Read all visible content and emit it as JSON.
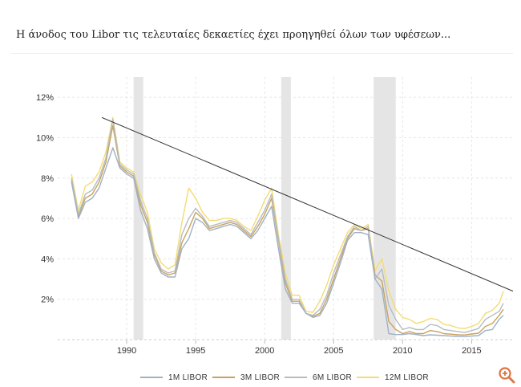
{
  "chart_data": {
    "type": "line",
    "title": "Η άνοδος του Libor τις τελευταίες δεκαετίες έχει προηγηθεί όλων των υφέσεων...",
    "xlabel": "",
    "ylabel": "",
    "x_ticks": [
      "1990",
      "1995",
      "2000",
      "2005",
      "2010",
      "2015"
    ],
    "y_ticks": [
      "2%",
      "4%",
      "6%",
      "8%",
      "10%",
      "12%"
    ],
    "xlim": [
      1985.0,
      2018.0
    ],
    "ylim": [
      0,
      13
    ],
    "grid": true,
    "legend_position": "bottom",
    "recessions": [
      [
        1990.5,
        1991.2
      ],
      [
        2001.2,
        2001.9
      ],
      [
        2007.9,
        2009.5
      ]
    ],
    "trendline": [
      [
        1988.2,
        11.0
      ],
      [
        2018.0,
        2.4
      ]
    ],
    "series": [
      {
        "name": "1M LIBOR",
        "color": "#9fb2c5",
        "x": [
          1986.0,
          1986.5,
          1987.0,
          1987.5,
          1988.0,
          1988.5,
          1989.0,
          1989.5,
          1990.0,
          1990.5,
          1991.0,
          1991.5,
          1992.0,
          1992.5,
          1993.0,
          1993.5,
          1994.0,
          1994.5,
          1995.0,
          1995.5,
          1996.0,
          1996.5,
          1997.0,
          1997.5,
          1998.0,
          1998.5,
          1999.0,
          1999.5,
          2000.0,
          2000.5,
          2001.0,
          2001.5,
          2002.0,
          2002.5,
          2003.0,
          2003.5,
          2004.0,
          2004.5,
          2005.0,
          2005.5,
          2006.0,
          2006.5,
          2007.0,
          2007.5,
          2008.0,
          2008.5,
          2009.0,
          2009.5,
          2010.0,
          2010.5,
          2011.0,
          2011.5,
          2012.0,
          2012.5,
          2013.0,
          2013.5,
          2014.0,
          2014.5,
          2015.0,
          2015.5,
          2016.0,
          2016.5,
          2017.0,
          2017.3
        ],
        "values": [
          7.8,
          6.0,
          6.8,
          7.0,
          7.5,
          8.5,
          9.5,
          8.5,
          8.2,
          8.0,
          6.4,
          5.5,
          4.0,
          3.3,
          3.1,
          3.1,
          4.5,
          5.0,
          6.0,
          5.8,
          5.4,
          5.5,
          5.6,
          5.7,
          5.6,
          5.3,
          5.0,
          5.4,
          6.0,
          6.6,
          4.5,
          2.5,
          1.8,
          1.8,
          1.3,
          1.1,
          1.2,
          1.8,
          2.8,
          3.8,
          4.9,
          5.3,
          5.3,
          5.2,
          3.0,
          2.5,
          0.3,
          0.25,
          0.25,
          0.3,
          0.25,
          0.2,
          0.24,
          0.22,
          0.2,
          0.18,
          0.16,
          0.15,
          0.18,
          0.2,
          0.45,
          0.5,
          1.0,
          1.2
        ]
      },
      {
        "name": "3M LIBOR",
        "color": "#c9a25d",
        "x": [
          1986.0,
          1986.5,
          1987.0,
          1987.5,
          1988.0,
          1988.5,
          1989.0,
          1989.5,
          1990.0,
          1990.5,
          1991.0,
          1991.5,
          1992.0,
          1992.5,
          1993.0,
          1993.5,
          1994.0,
          1994.5,
          1995.0,
          1995.5,
          1996.0,
          1996.5,
          1997.0,
          1997.5,
          1998.0,
          1998.5,
          1999.0,
          1999.5,
          2000.0,
          2000.5,
          2001.0,
          2001.5,
          2002.0,
          2002.5,
          2003.0,
          2003.5,
          2004.0,
          2004.5,
          2005.0,
          2005.5,
          2006.0,
          2006.5,
          2007.0,
          2007.5,
          2008.0,
          2008.5,
          2009.0,
          2009.5,
          2010.0,
          2010.5,
          2011.0,
          2011.5,
          2012.0,
          2012.5,
          2013.0,
          2013.5,
          2014.0,
          2014.5,
          2015.0,
          2015.5,
          2016.0,
          2016.5,
          2017.0,
          2017.3
        ],
        "values": [
          7.9,
          6.1,
          7.0,
          7.2,
          7.8,
          8.8,
          10.6,
          8.6,
          8.3,
          8.1,
          6.7,
          5.8,
          4.2,
          3.4,
          3.2,
          3.3,
          4.8,
          5.5,
          6.3,
          6.0,
          5.5,
          5.6,
          5.7,
          5.8,
          5.7,
          5.4,
          5.1,
          5.6,
          6.2,
          7.0,
          4.9,
          2.8,
          1.9,
          1.9,
          1.3,
          1.15,
          1.3,
          2.0,
          3.0,
          4.0,
          5.0,
          5.5,
          5.4,
          5.5,
          3.2,
          2.9,
          0.9,
          0.5,
          0.3,
          0.4,
          0.3,
          0.3,
          0.45,
          0.4,
          0.3,
          0.27,
          0.24,
          0.23,
          0.28,
          0.32,
          0.65,
          0.8,
          1.2,
          1.5
        ]
      },
      {
        "name": "6M LIBOR",
        "color": "#b7bcc2",
        "x": [
          1986.0,
          1986.5,
          1987.0,
          1987.5,
          1988.0,
          1988.5,
          1989.0,
          1989.5,
          1990.0,
          1990.5,
          1991.0,
          1991.5,
          1992.0,
          1992.5,
          1993.0,
          1993.5,
          1994.0,
          1994.5,
          1995.0,
          1995.5,
          1996.0,
          1996.5,
          1997.0,
          1997.5,
          1998.0,
          1998.5,
          1999.0,
          1999.5,
          2000.0,
          2000.5,
          2001.0,
          2001.5,
          2002.0,
          2002.5,
          2003.0,
          2003.5,
          2004.0,
          2004.5,
          2005.0,
          2005.5,
          2006.0,
          2006.5,
          2007.0,
          2007.5,
          2008.0,
          2008.5,
          2009.0,
          2009.5,
          2010.0,
          2010.5,
          2011.0,
          2011.5,
          2012.0,
          2012.5,
          2013.0,
          2013.5,
          2014.0,
          2014.5,
          2015.0,
          2015.5,
          2016.0,
          2016.5,
          2017.0,
          2017.3
        ],
        "values": [
          8.0,
          6.2,
          7.2,
          7.4,
          8.0,
          9.0,
          10.9,
          8.7,
          8.4,
          8.2,
          6.9,
          6.0,
          4.3,
          3.5,
          3.3,
          3.4,
          5.2,
          6.0,
          6.5,
          6.1,
          5.6,
          5.7,
          5.8,
          5.9,
          5.8,
          5.5,
          5.2,
          5.8,
          6.4,
          7.2,
          5.0,
          3.0,
          2.0,
          2.0,
          1.3,
          1.2,
          1.5,
          2.2,
          3.3,
          4.2,
          5.1,
          5.6,
          5.4,
          5.6,
          3.0,
          3.5,
          1.7,
          1.0,
          0.5,
          0.6,
          0.5,
          0.5,
          0.75,
          0.7,
          0.5,
          0.45,
          0.4,
          0.35,
          0.45,
          0.55,
          1.0,
          1.2,
          1.4,
          1.8
        ]
      },
      {
        "name": "12M LIBOR",
        "color": "#f3dc72",
        "x": [
          1986.0,
          1986.5,
          1987.0,
          1987.5,
          1988.0,
          1988.5,
          1989.0,
          1989.5,
          1990.0,
          1990.5,
          1991.0,
          1991.5,
          1992.0,
          1992.5,
          1993.0,
          1993.5,
          1994.0,
          1994.5,
          1995.0,
          1995.5,
          1996.0,
          1996.5,
          1997.0,
          1997.5,
          1998.0,
          1998.5,
          1999.0,
          1999.5,
          2000.0,
          2000.5,
          2001.0,
          2001.5,
          2002.0,
          2002.5,
          2003.0,
          2003.5,
          2004.0,
          2004.5,
          2005.0,
          2005.5,
          2006.0,
          2006.5,
          2007.0,
          2007.5,
          2008.0,
          2008.5,
          2009.0,
          2009.5,
          2010.0,
          2010.5,
          2011.0,
          2011.5,
          2012.0,
          2012.5,
          2013.0,
          2013.5,
          2014.0,
          2014.5,
          2015.0,
          2015.5,
          2016.0,
          2016.5,
          2017.0,
          2017.3
        ],
        "values": [
          8.2,
          6.4,
          7.6,
          7.8,
          8.3,
          9.3,
          11.0,
          8.8,
          8.5,
          8.3,
          7.2,
          6.3,
          4.5,
          3.8,
          3.5,
          3.7,
          5.8,
          7.5,
          7.0,
          6.3,
          5.9,
          5.9,
          6.0,
          6.0,
          5.9,
          5.6,
          5.4,
          6.1,
          6.9,
          7.5,
          5.2,
          3.3,
          2.2,
          2.2,
          1.4,
          1.35,
          1.9,
          2.7,
          3.7,
          4.5,
          5.3,
          5.7,
          5.5,
          5.7,
          3.4,
          4.0,
          2.4,
          1.5,
          1.1,
          1.0,
          0.8,
          0.9,
          1.05,
          1.0,
          0.75,
          0.7,
          0.58,
          0.55,
          0.65,
          0.8,
          1.3,
          1.45,
          1.8,
          2.4
        ]
      }
    ]
  },
  "ui": {
    "zoom_icon": "zoom-in-icon"
  }
}
